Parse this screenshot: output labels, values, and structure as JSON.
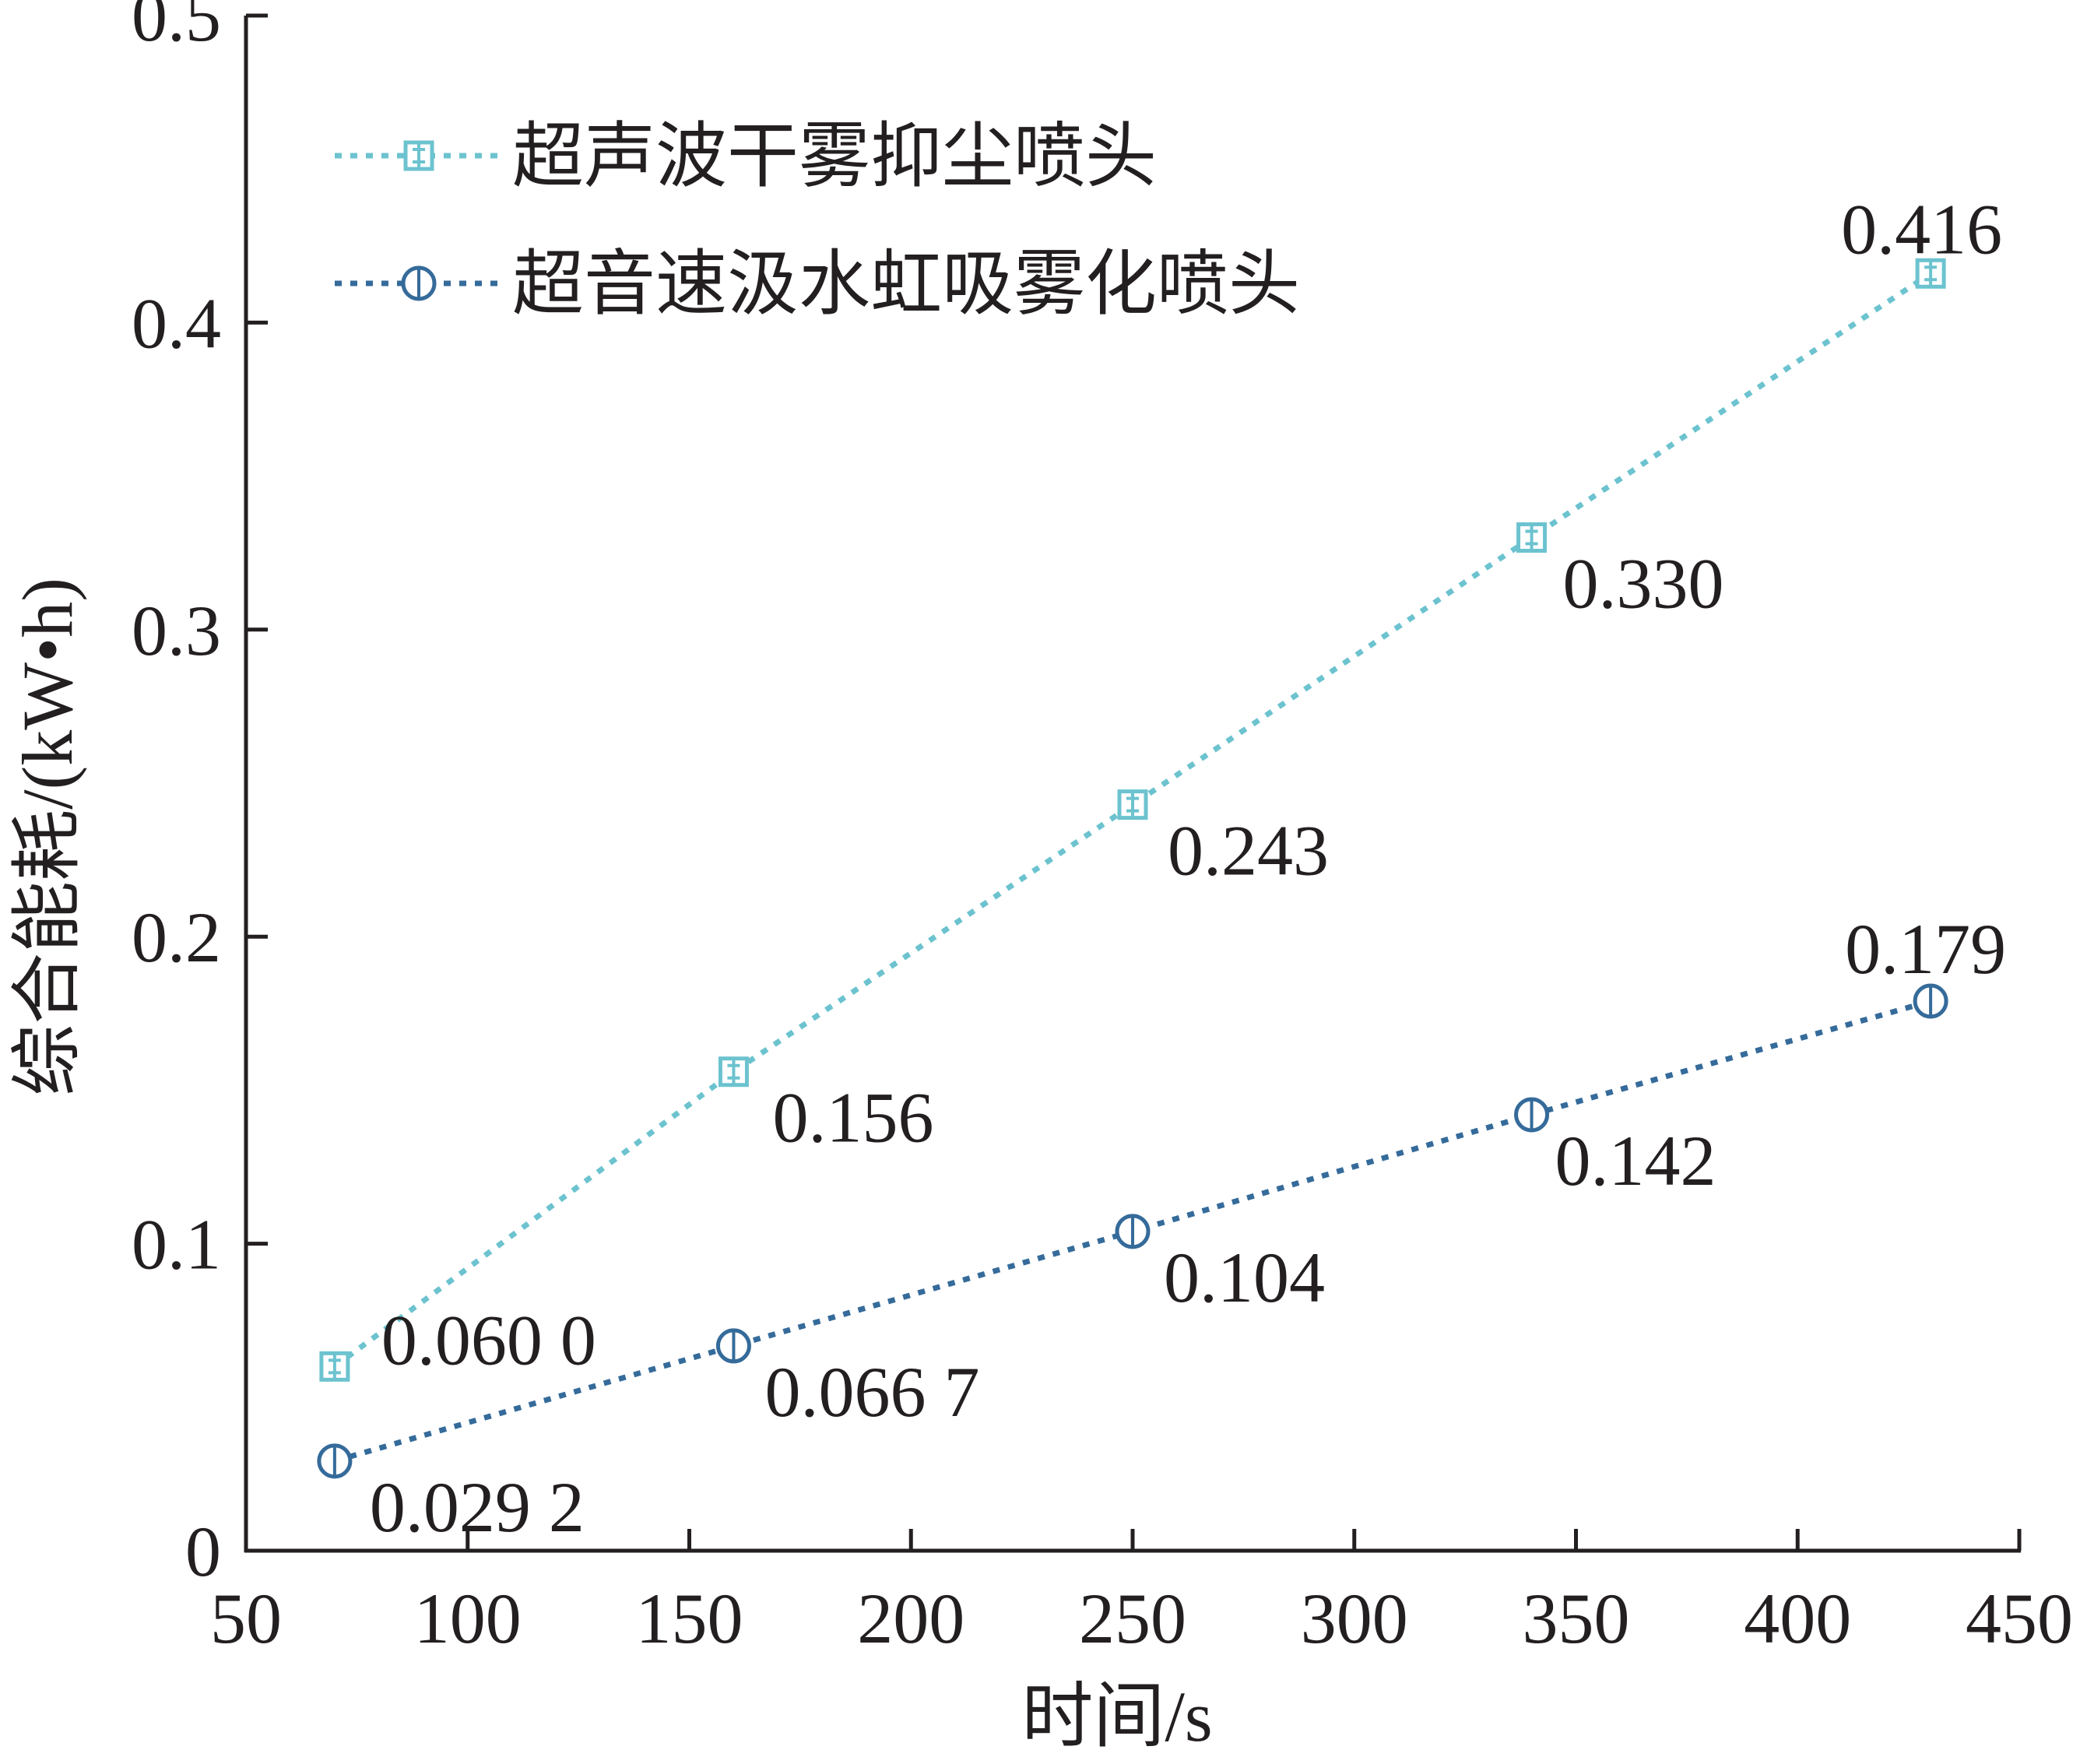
{
  "chart_data": {
    "type": "line",
    "title": "",
    "xlabel": "时间/s",
    "ylabel": "综合能耗/(kW•h)",
    "xlim": [
      50,
      450
    ],
    "ylim": [
      0,
      0.5
    ],
    "x_ticks": [
      "50",
      "100",
      "150",
      "200",
      "250",
      "300",
      "350",
      "400",
      "450"
    ],
    "x_tick_values": [
      50,
      100,
      150,
      200,
      250,
      300,
      350,
      400,
      450
    ],
    "y_ticks": [
      "0",
      "0.1",
      "0.2",
      "0.3",
      "0.4",
      "0.5"
    ],
    "y_tick_values": [
      0,
      0.1,
      0.2,
      0.3,
      0.4,
      0.5
    ],
    "grid": false,
    "legend_position": "top-left",
    "x": [
      70,
      160,
      250,
      340,
      430
    ],
    "series": [
      {
        "name": "超声波干雾抑尘喷头",
        "values": [
          0.06,
          0.156,
          0.243,
          0.33,
          0.416
        ],
        "labels": [
          "0.060 0",
          "0.156",
          "0.243",
          "0.330",
          "0.416"
        ],
        "marker": "square",
        "color": "#6cc3cf",
        "line_style": "dotted"
      },
      {
        "name": "超音速汲水虹吸雾化喷头",
        "values": [
          0.0292,
          0.0667,
          0.104,
          0.142,
          0.179
        ],
        "labels": [
          "0.029 2",
          "0.066 7",
          "0.104",
          "0.142",
          "0.179"
        ],
        "marker": "circle",
        "color": "#356b9a",
        "line_style": "dotted"
      }
    ]
  }
}
